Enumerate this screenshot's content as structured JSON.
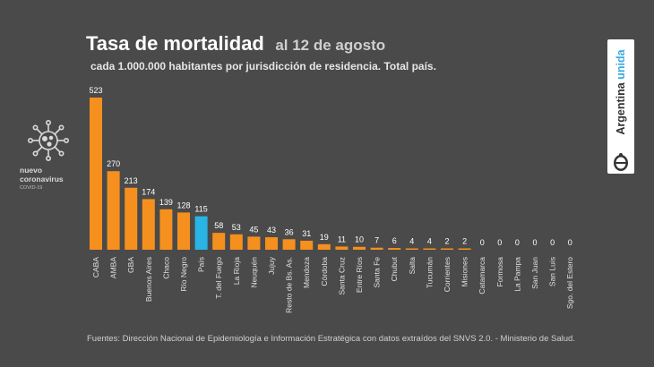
{
  "header": {
    "title": "Tasa de mortalidad",
    "date": "al 12 de agosto",
    "subtitle": "cada 1.000.000 habitantes por jurisdicción de residencia. Total país."
  },
  "logo": {
    "line1": "nuevo",
    "line2": "coronavirus",
    "line3": "COVID-19",
    "icon": "virus-icon"
  },
  "brand": {
    "word1": "Argentina",
    "word2": "unida",
    "seal_icon": "coat-of-arms-icon"
  },
  "footer": "Fuentes: Dirección Nacional de Epidemiología e Información Estratégica con datos extraídos del SNVS 2.0. - Ministerio de Salud.",
  "colors": {
    "background": "#4a4a4a",
    "bar": "#f5901e",
    "highlight": "#2ab4e6",
    "brand_accent": "#3aaae0"
  },
  "chart_data": {
    "type": "bar",
    "title": "Tasa de mortalidad",
    "highlight_category": "País",
    "categories": [
      "CABA",
      "AMBA",
      "GBA",
      "Buenos Aires",
      "Chaco",
      "Río Negro",
      "País",
      "T. del Fuego",
      "La Rioja",
      "Neuquén",
      "Jujuy",
      "Resto de Bs. As.",
      "Mendoza",
      "Córdoba",
      "Santa Cruz",
      "Entre Ríos",
      "Santa Fe",
      "Chubut",
      "Salta",
      "Tucumán",
      "Corrientes",
      "Misiones",
      "Catamarca",
      "Formosa",
      "La Pampa",
      "San Juan",
      "San Luis",
      "Sgo. del Estero"
    ],
    "values": [
      523,
      270,
      213,
      174,
      139,
      128,
      115,
      58,
      53,
      45,
      43,
      36,
      31,
      19,
      11,
      10,
      7,
      6,
      4,
      4,
      2,
      2,
      0,
      0,
      0,
      0,
      0,
      0
    ],
    "data_labels": true,
    "ylim": [
      0,
      523
    ],
    "grid": false
  }
}
